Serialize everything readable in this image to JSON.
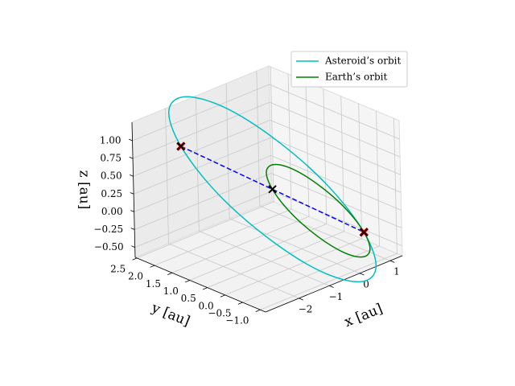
{
  "chart_data": {
    "type": "line3d",
    "xlabel": "x [au]",
    "ylabel": "y [au]",
    "zlabel": "z [au]",
    "xlim": [
      -3.1,
      1.4
    ],
    "ylim": [
      -1.15,
      2.55
    ],
    "zlim": [
      -0.64,
      1.26
    ],
    "xticks": [
      {
        "value": -2,
        "label": "−2"
      },
      {
        "value": -1,
        "label": "−1"
      },
      0,
      1
    ],
    "yticks": [
      {
        "value": -1,
        "label": "−1.0"
      },
      {
        "value": -0.5,
        "label": "−0.5"
      },
      {
        "value": 0,
        "label": "0.0"
      },
      0.5,
      {
        "value": 1,
        "label": "1.0"
      },
      1.5,
      {
        "value": 2,
        "label": "2.0"
      },
      2.5
    ],
    "zticks": [
      {
        "value": -0.5,
        "label": "−0.50"
      },
      {
        "value": -0.25,
        "label": "−0.25"
      },
      {
        "value": 0,
        "label": "0.00"
      },
      0.25,
      {
        "value": 0.5,
        "label": "0.50"
      },
      0.75,
      {
        "value": 1,
        "label": "1.00"
      }
    ],
    "grid": true,
    "legend": "upper right",
    "series": [
      {
        "name": "Asteroid’s orbit",
        "color": "#00bfbf",
        "closed": true,
        "x": [
          0.69,
          0.33,
          -0.29,
          -1.03,
          -1.67,
          -2.05,
          -2.07,
          -1.71,
          -1.09,
          -0.35,
          0.29,
          0.67
        ],
        "y": [
          -0.69,
          0.01,
          0.91,
          1.73,
          2.29,
          2.41,
          2.07,
          1.37,
          0.47,
          -0.35,
          -0.91,
          -1.03
        ],
        "z": [
          -0.28,
          0.3,
          0.86,
          1.28,
          1.42,
          1.26,
          0.84,
          0.26,
          -0.3,
          -0.72,
          -0.86,
          -0.7
        ]
      },
      {
        "name": "Earth’s orbit",
        "color": "#008000",
        "closed": true,
        "x": [
          0.69,
          0.51,
          0.2,
          -0.17,
          -0.49,
          -0.68,
          -0.69,
          -0.51,
          -0.2,
          0.17,
          0.49,
          0.68
        ],
        "y": [
          -0.69,
          -0.34,
          0.11,
          0.52,
          0.8,
          0.86,
          0.69,
          0.34,
          -0.11,
          -0.52,
          -0.8,
          -0.86
        ],
        "z": [
          -0.28,
          0.01,
          0.29,
          0.5,
          0.57,
          0.49,
          0.28,
          -0.01,
          -0.29,
          -0.5,
          -0.57,
          -0.49
        ]
      },
      {
        "color": "#0000ff",
        "linestyle": "dashed",
        "x": [
          -2.07,
          -0.69,
          0.69
        ],
        "y": [
          2.07,
          0.69,
          -0.69
        ],
        "z": [
          0.84,
          0.28,
          -0.28
        ]
      }
    ],
    "markers": [
      {
        "color": "#ff0000",
        "x": [
          -2.07,
          0.69
        ],
        "y": [
          2.07,
          -0.69
        ],
        "z": [
          0.84,
          -0.28
        ]
      },
      {
        "color": "#000000",
        "x": [
          -2.07,
          -0.69,
          0.69
        ],
        "y": [
          2.07,
          0.69,
          -0.69
        ],
        "z": [
          0.84,
          0.28,
          -0.28
        ]
      }
    ]
  }
}
